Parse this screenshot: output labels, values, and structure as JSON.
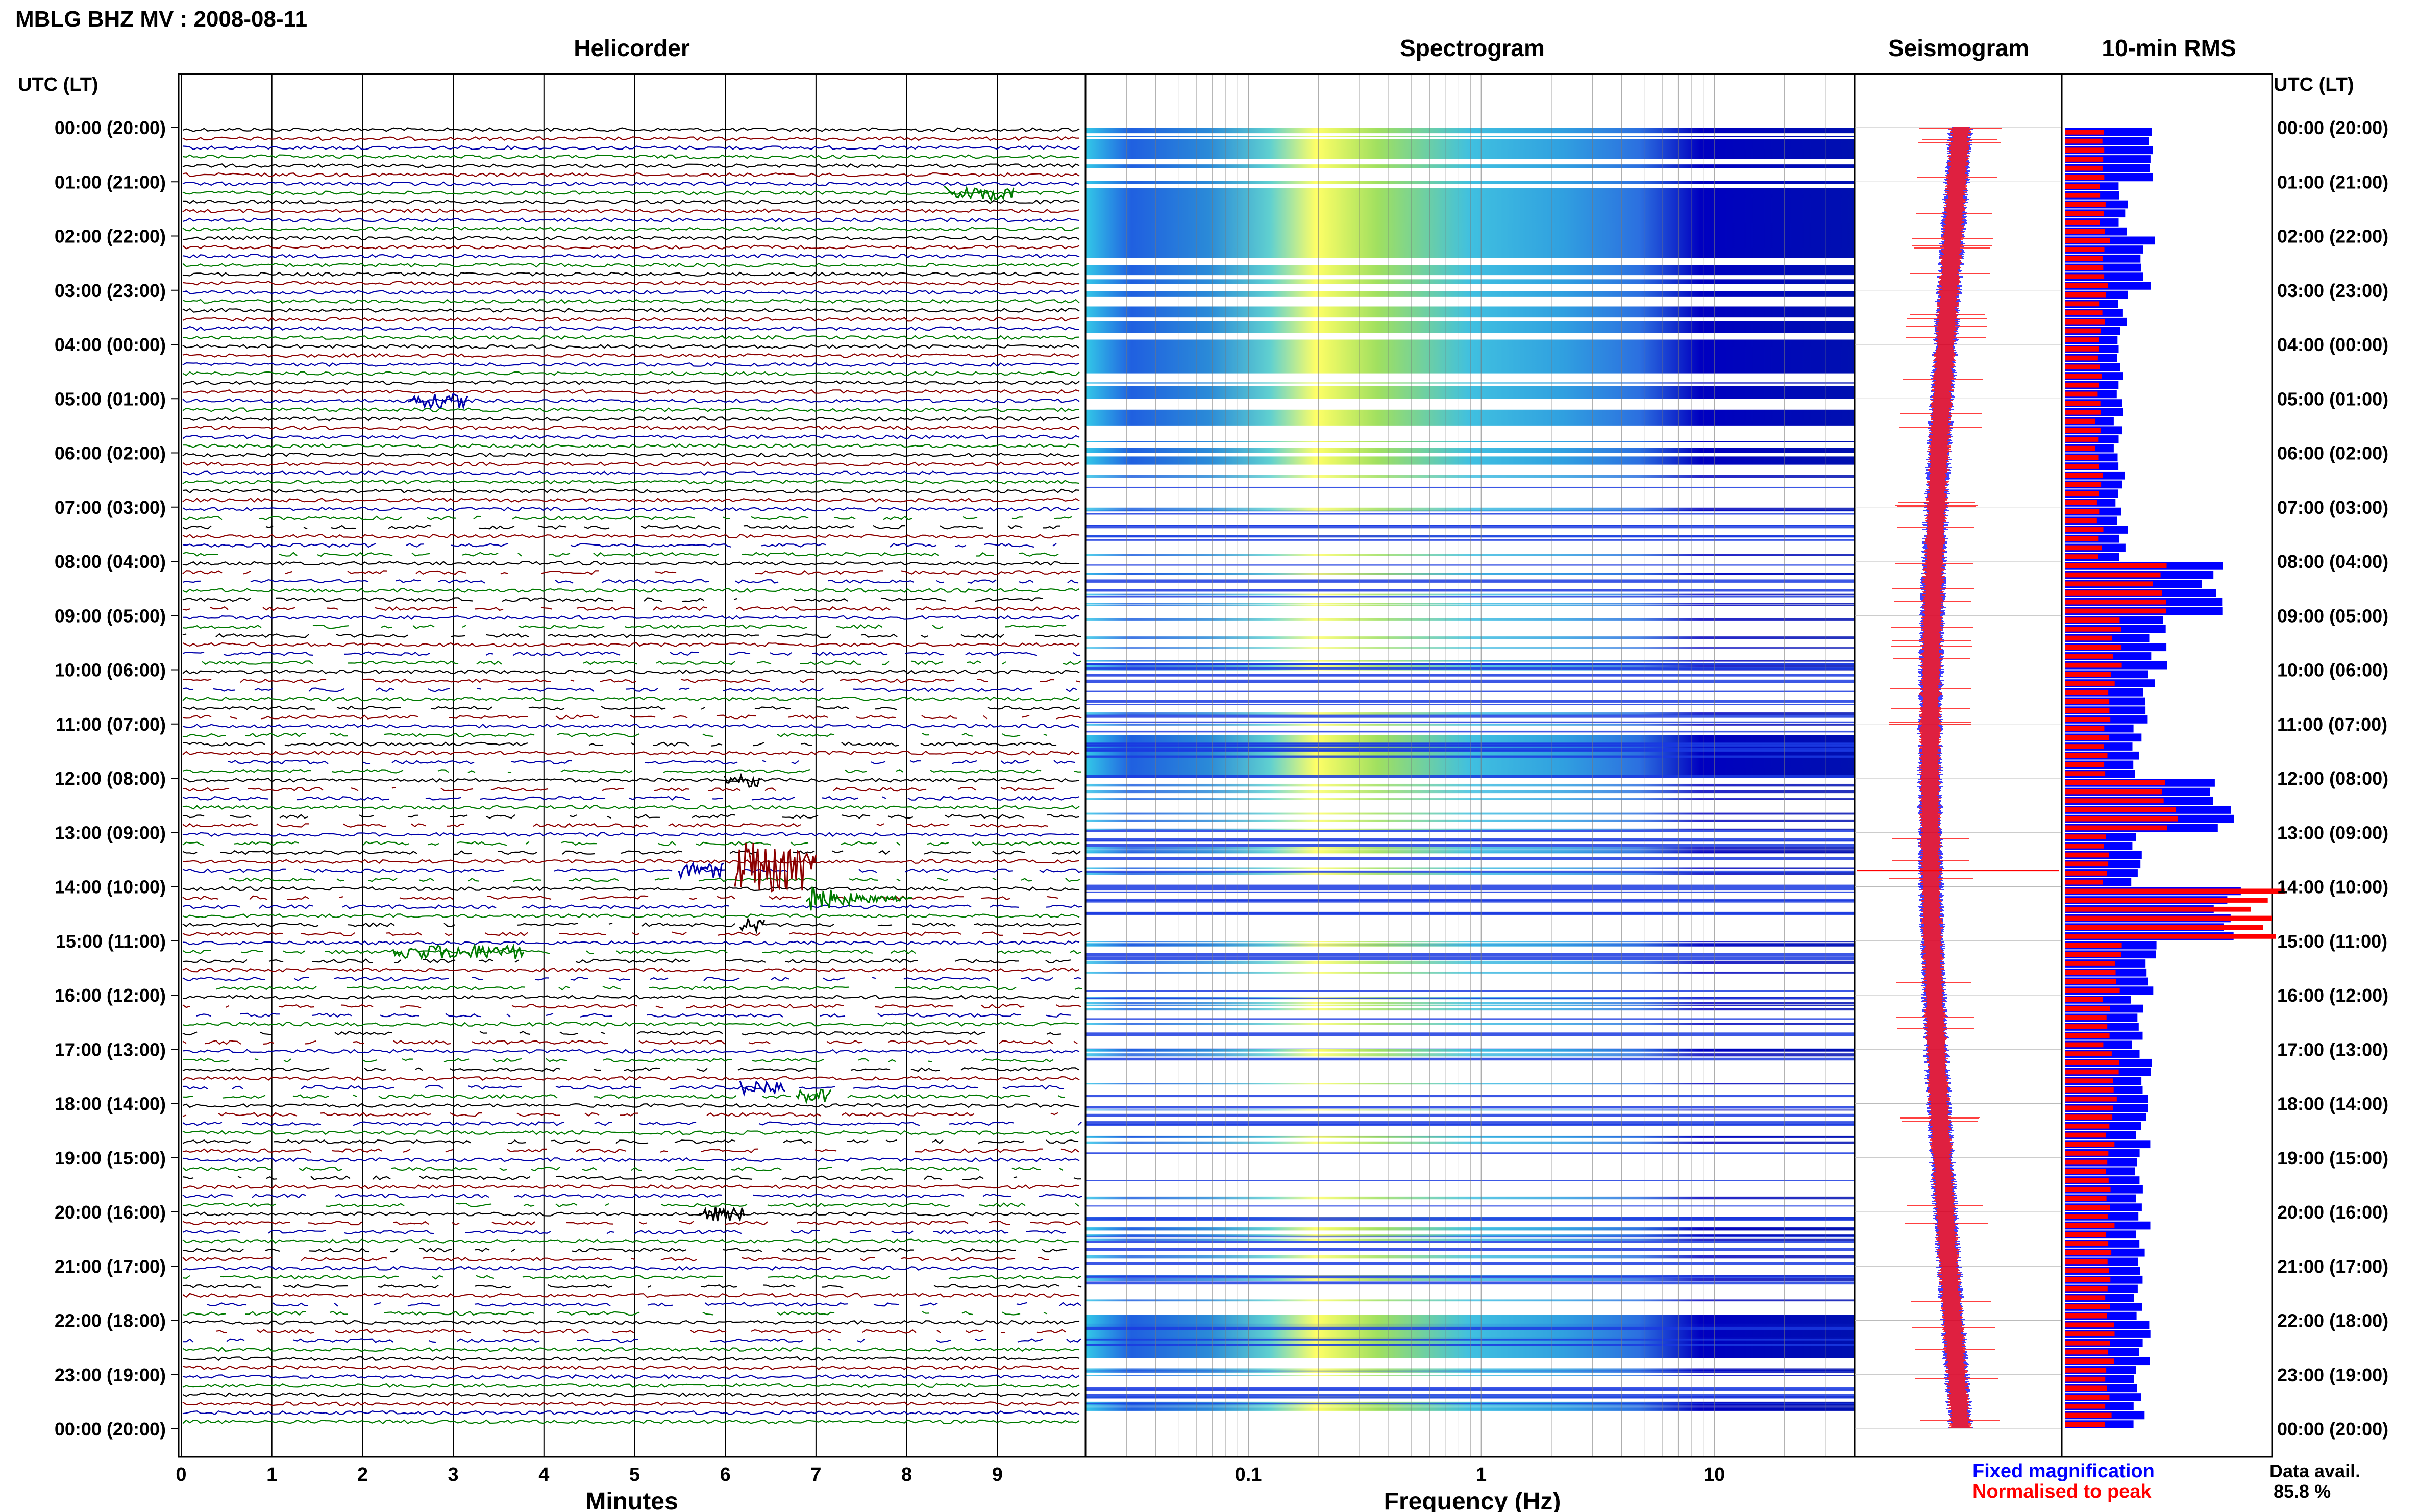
{
  "header": {
    "station": "MBLG BHZ MV : 2008-08-11",
    "panel_titles": [
      "Helicorder",
      "Spectrogram",
      "Seismogram",
      "10-min RMS"
    ],
    "left_axis_title": "UTC (LT)",
    "right_axis_title": "UTC (LT)"
  },
  "time_labels": [
    "00:00 (20:00)",
    "01:00 (21:00)",
    "02:00 (22:00)",
    "03:00 (23:00)",
    "04:00 (00:00)",
    "05:00 (01:00)",
    "06:00 (02:00)",
    "07:00 (03:00)",
    "08:00 (04:00)",
    "09:00 (05:00)",
    "10:00 (06:00)",
    "11:00 (07:00)",
    "12:00 (08:00)",
    "13:00 (09:00)",
    "14:00 (10:00)",
    "15:00 (11:00)",
    "16:00 (12:00)",
    "17:00 (13:00)",
    "18:00 (14:00)",
    "19:00 (15:00)",
    "20:00 (16:00)",
    "21:00 (17:00)",
    "22:00 (18:00)",
    "23:00 (19:00)",
    "00:00 (20:00)"
  ],
  "helicorder": {
    "xlabel": "Minutes",
    "ticks": [
      "0",
      "1",
      "2",
      "3",
      "4",
      "5",
      "6",
      "7",
      "8",
      "9"
    ],
    "trace_colors": [
      "#000000",
      "#8b0000",
      "#0000aa",
      "#007a00"
    ]
  },
  "spectrogram": {
    "xlabel": "Frequency (Hz)",
    "ticks": [
      "0.1",
      "1",
      "10"
    ],
    "scale": "log",
    "colormap": [
      "#0000c0",
      "#00c0ff",
      "#ffff66"
    ]
  },
  "legend": {
    "fixed": "Fixed magnification",
    "normalised": "Normalised to peak",
    "fixed_color": "#0000ff",
    "normalised_color": "#ff0000"
  },
  "availability": {
    "label": "Data avail.",
    "value": "85.8 %"
  },
  "chart_data": [
    {
      "type": "heatmap",
      "title": "Spectrogram",
      "xlabel": "Frequency (Hz)",
      "x_scale": "log",
      "x_ticks": [
        0.1,
        1,
        10
      ],
      "y_range_hours_utc": [
        0,
        24
      ],
      "strong_blocks_hours": [
        [
          0.0,
          6.3
        ],
        [
          11.2,
          12.0
        ],
        [
          21.9,
          22.7
        ]
      ]
    },
    {
      "type": "bar",
      "title": "10-min RMS",
      "orientation": "horizontal",
      "categories": [
        "00:00",
        "01:00",
        "02:00",
        "03:00",
        "04:00",
        "05:00",
        "06:00",
        "07:00",
        "08:00",
        "09:00",
        "10:00",
        "11:00",
        "12:00",
        "13:00",
        "14:00",
        "15:00",
        "16:00",
        "17:00",
        "18:00",
        "19:00",
        "20:00",
        "21:00",
        "22:00",
        "23:00"
      ],
      "series": [
        {
          "name": "Fixed magnification",
          "values": [
            0.45,
            0.28,
            0.4,
            0.28,
            0.27,
            0.26,
            0.27,
            0.28,
            0.7,
            0.45,
            0.4,
            0.35,
            0.75,
            0.35,
            0.8,
            0.42,
            0.35,
            0.4,
            0.38,
            0.36,
            0.38,
            0.36,
            0.38,
            0.36
          ]
        },
        {
          "name": "Normalised to peak",
          "values": [
            0.2,
            0.18,
            0.2,
            0.18,
            0.17,
            0.16,
            0.17,
            0.17,
            0.45,
            0.25,
            0.22,
            0.2,
            0.5,
            0.2,
            1.0,
            0.26,
            0.2,
            0.25,
            0.22,
            0.21,
            0.22,
            0.21,
            0.22,
            0.21
          ]
        }
      ]
    }
  ]
}
